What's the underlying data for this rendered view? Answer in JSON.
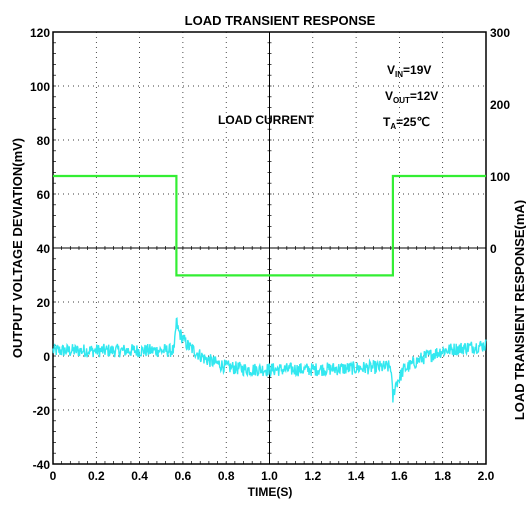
{
  "chart_data": {
    "type": "line",
    "title": "LOAD TRANSIENT RESPONSE",
    "xlabel": "TIME(S)",
    "ylabel": "OUTPUT VOLTAGE DEVIATION(mV)",
    "ylabel_right": "LOAD TRANSIENT RESPONSE(mA)",
    "xlim": [
      0,
      2.0
    ],
    "ylim": [
      -40,
      120
    ],
    "ylim_right": [
      -300,
      300
    ],
    "x_ticks": [
      "0",
      "0.2",
      "0.4",
      "0.6",
      "0.8",
      "1.0",
      "1.2",
      "1.4",
      "1.6",
      "1.8",
      "2.0"
    ],
    "y_ticks": [
      "-40",
      "-20",
      "0",
      "20",
      "40",
      "60",
      "80",
      "100",
      "120"
    ],
    "y_ticks_right": [
      "0",
      "100",
      "200",
      "300"
    ],
    "grid": true,
    "colors": {
      "load_current": "#33ee33",
      "voltage_deviation": "#33e8f0"
    },
    "annotations": {
      "load_label": "LOAD CURRENT",
      "cond_vin": "V",
      "cond_vin_sub": "IN",
      "cond_vin_val": "=19V",
      "cond_vout": "V",
      "cond_vout_sub": "OUT",
      "cond_vout_val": "=12V",
      "cond_ta": "T",
      "cond_ta_sub": "A",
      "cond_ta_val": "=25℃"
    },
    "series": [
      {
        "axis": "right",
        "x": [
          0,
          0.57,
          0.57,
          1.57,
          1.57,
          2.0
        ],
        "y": [
          100,
          100,
          -38,
          -38,
          100,
          100
        ]
      },
      {
        "axis": "left",
        "noise": 2.5,
        "x": [
          0,
          0.56,
          0.57,
          0.58,
          0.62,
          0.7,
          0.8,
          0.9,
          1.0,
          1.2,
          1.4,
          1.56,
          1.57,
          1.58,
          1.62,
          1.7,
          1.8,
          1.9,
          2.0
        ],
        "y": [
          2,
          2,
          13,
          9,
          4,
          -1,
          -4,
          -5,
          -5,
          -5,
          -4.5,
          -4,
          -16,
          -11,
          -5,
          -1,
          2,
          3,
          4
        ]
      }
    ]
  }
}
